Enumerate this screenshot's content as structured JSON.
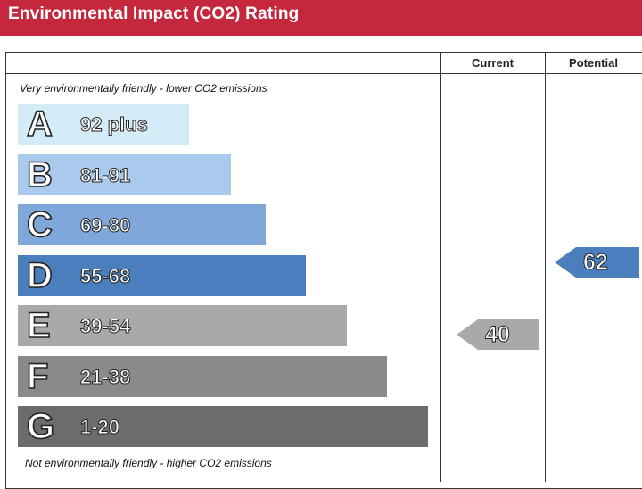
{
  "header": {
    "title": "Environmental Impact (CO2) Rating",
    "background": "#c5283d"
  },
  "columns": {
    "current_label": "Current",
    "potential_label": "Potential"
  },
  "captions": {
    "top": "Very environmentally friendly - lower CO2 emissions",
    "bottom": "Not environmentally friendly - higher CO2 emissions"
  },
  "chart_data": {
    "type": "bar",
    "title": "Environmental Impact (CO2) Rating",
    "categories": [
      "A",
      "B",
      "C",
      "D",
      "E",
      "F",
      "G"
    ],
    "ranges": [
      "92 plus",
      "81-91",
      "69-80",
      "55-68",
      "39-54",
      "21-38",
      "1-20"
    ],
    "colors": [
      "#d4ecf8",
      "#a9caec",
      "#7fa7d9",
      "#4a7ebd",
      "#a9a9a9",
      "#8a8a8a",
      "#6c6c6c"
    ],
    "ratings": {
      "current": {
        "label": "Current",
        "value": 40,
        "band": "E"
      },
      "potential": {
        "label": "Potential",
        "value": 62,
        "band": "D"
      }
    }
  }
}
